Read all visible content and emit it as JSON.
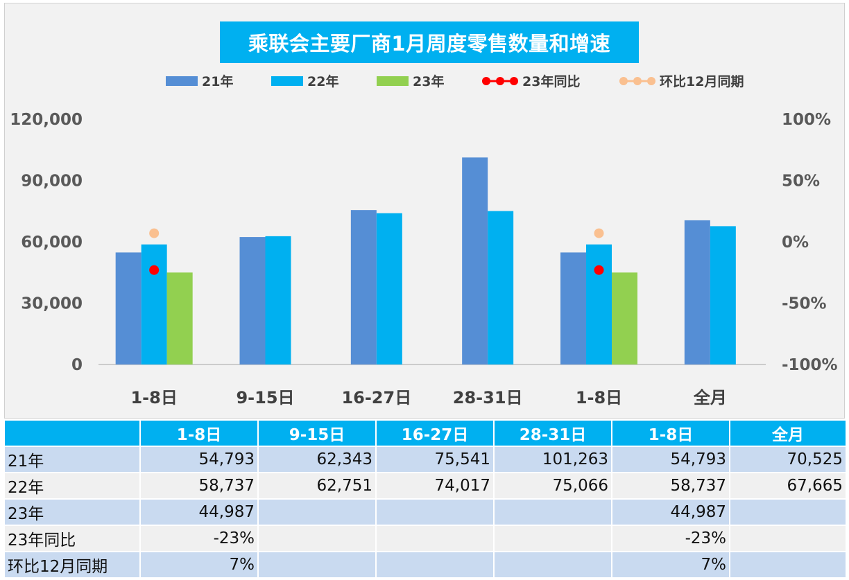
{
  "chart_data": {
    "type": "bar",
    "title": "乘联会主要厂商1月周度零售数量和增速",
    "categories": [
      "1-8日",
      "9-15日",
      "16-27日",
      "28-31日",
      "1-8日",
      "全月"
    ],
    "series": [
      {
        "name": "21年",
        "kind": "bar",
        "axis": "left",
        "color": "#558ed5",
        "values": [
          54793,
          62343,
          75541,
          101263,
          54793,
          70525
        ]
      },
      {
        "name": "22年",
        "kind": "bar",
        "axis": "left",
        "color": "#00b0f0",
        "values": [
          58737,
          62751,
          74017,
          75066,
          58737,
          67665
        ]
      },
      {
        "name": "23年",
        "kind": "bar",
        "axis": "left",
        "color": "#92d050",
        "values": [
          44987,
          null,
          null,
          null,
          44987,
          null
        ]
      },
      {
        "name": "23年同比",
        "kind": "line",
        "axis": "right",
        "color": "#ff0000",
        "values": [
          -0.23,
          null,
          null,
          null,
          -0.23,
          null
        ]
      },
      {
        "name": "环比12月同期",
        "kind": "line",
        "axis": "right",
        "color": "#fac090",
        "values": [
          0.07,
          null,
          null,
          null,
          0.07,
          null
        ]
      }
    ],
    "y_left": {
      "min": 0,
      "max": 120000,
      "ticks": [
        0,
        30000,
        60000,
        90000,
        120000
      ],
      "tick_labels": [
        "0",
        "30,000",
        "60,000",
        "90,000",
        "120,000"
      ]
    },
    "y_right": {
      "min": -1,
      "max": 1,
      "ticks": [
        -1,
        -0.5,
        0,
        0.5,
        1
      ],
      "tick_labels": [
        "-100%",
        "-50%",
        "0%",
        "50%",
        "100%"
      ]
    },
    "legend_position": "top",
    "grid": false
  },
  "table": {
    "headers": [
      "",
      "1-8日",
      "9-15日",
      "16-27日",
      "28-31日",
      "1-8日",
      "全月"
    ],
    "rows": [
      {
        "label": "21年",
        "cells": [
          "54,793",
          "62,343",
          "75,541",
          "101,263",
          "54,793",
          "70,525"
        ]
      },
      {
        "label": "22年",
        "cells": [
          "58,737",
          "62,751",
          "74,017",
          "75,066",
          "58,737",
          "67,665"
        ]
      },
      {
        "label": "23年",
        "cells": [
          "44,987",
          "",
          "",
          "",
          "44,987",
          ""
        ]
      },
      {
        "label": "23年同比",
        "cells": [
          "-23%",
          "",
          "",
          "",
          "-23%",
          ""
        ]
      },
      {
        "label": "环比12月同期",
        "cells": [
          "7%",
          "",
          "",
          "",
          "7%",
          ""
        ]
      }
    ]
  }
}
